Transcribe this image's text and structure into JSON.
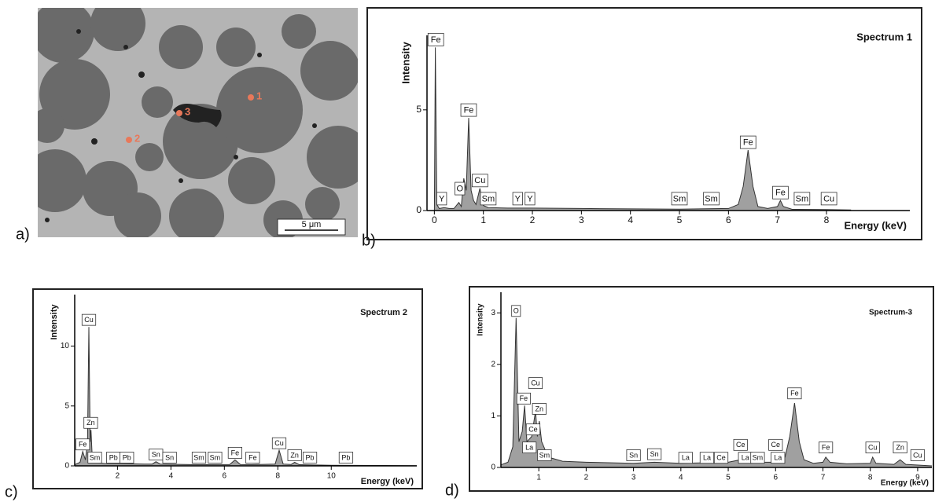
{
  "panels": [
    "a)",
    "b)",
    "c)",
    "d)"
  ],
  "micrograph": {
    "points": [
      "1",
      "2",
      "3"
    ],
    "scale_bar": "5 μm"
  },
  "chart_data": [
    {
      "type": "area",
      "title": "Spectrum 1",
      "x_label": "Energy (keV)",
      "y_label": "Intensity",
      "x": [
        0,
        0.02,
        0.05,
        0.1,
        0.2,
        0.3,
        0.4,
        0.5,
        0.55,
        0.6,
        0.65,
        0.7,
        0.75,
        0.8,
        0.85,
        0.93,
        1.0,
        1.1,
        1.5,
        2,
        3,
        4,
        5,
        6,
        6.2,
        6.3,
        6.4,
        6.5,
        6.6,
        6.8,
        7.0,
        7.06,
        7.12,
        7.3,
        8,
        8.5
      ],
      "values": [
        0,
        8.1,
        0.3,
        0.1,
        0.15,
        0.1,
        0.1,
        0.4,
        0.2,
        1.6,
        1,
        4.6,
        1,
        0.5,
        0.3,
        1.1,
        0.25,
        0.15,
        0.12,
        0.12,
        0.1,
        0.08,
        0.07,
        0.1,
        0.3,
        1.2,
        3.0,
        1.2,
        0.2,
        0.1,
        0.2,
        0.5,
        0.2,
        0.06,
        0.05,
        0.03
      ],
      "color": "#888888",
      "xlim": [
        -0.15,
        9.7
      ],
      "ylim": [
        0,
        8.7
      ],
      "xticks": [
        0,
        1,
        2,
        3,
        4,
        5,
        6,
        7,
        8
      ],
      "yticks": [
        0,
        5
      ],
      "annotations": [
        {
          "text": "Fe",
          "x": 0.03,
          "y": 8.1
        },
        {
          "text": "Fe",
          "x": 0.7,
          "y": 4.6
        },
        {
          "text": "Y",
          "x": 0.15,
          "y": 0.2
        },
        {
          "text": "O",
          "x": 0.52,
          "y": 0.7
        },
        {
          "text": "Cu",
          "x": 0.93,
          "y": 1.1
        },
        {
          "text": "Sm",
          "x": 1.1,
          "y": 0.2
        },
        {
          "text": "Y",
          "x": 1.7,
          "y": 0.2
        },
        {
          "text": "Y",
          "x": 1.95,
          "y": 0.2
        },
        {
          "text": "Sm",
          "x": 5.0,
          "y": 0.2
        },
        {
          "text": "Sm",
          "x": 5.65,
          "y": 0.2
        },
        {
          "text": "Fe",
          "x": 6.4,
          "y": 3.0
        },
        {
          "text": "Fe",
          "x": 7.06,
          "y": 0.5
        },
        {
          "text": "Sm",
          "x": 7.5,
          "y": 0.2
        },
        {
          "text": "Cu",
          "x": 8.05,
          "y": 0.2
        }
      ]
    },
    {
      "type": "area",
      "title": "Spectrum 2",
      "x_label": "Energy (keV)",
      "y_label": "Intensity",
      "x": [
        0.4,
        0.6,
        0.7,
        0.8,
        0.88,
        0.93,
        0.98,
        1.01,
        1.05,
        1.15,
        1.5,
        2,
        3,
        3.3,
        3.44,
        3.6,
        5,
        6.2,
        6.4,
        6.6,
        7,
        7.9,
        8.05,
        8.2,
        8.5,
        8.63,
        8.8,
        10,
        12,
        13.2
      ],
      "values": [
        0.1,
        0.3,
        1.2,
        0.5,
        2,
        11.6,
        2,
        3,
        1,
        0.3,
        0.2,
        0.2,
        0.15,
        0.15,
        0.35,
        0.15,
        0.1,
        0.12,
        0.5,
        0.12,
        0.1,
        0.15,
        1.3,
        0.15,
        0.12,
        0.3,
        0.1,
        0.05,
        0.03,
        0.02
      ],
      "color": "#888888",
      "xlim": [
        0.4,
        13.2
      ],
      "ylim": [
        0,
        14.3
      ],
      "xticks": [
        2,
        4,
        6,
        8,
        10
      ],
      "yticks": [
        0,
        5,
        10
      ],
      "annotations": [
        {
          "text": "Cu",
          "x": 0.93,
          "y": 11.6
        },
        {
          "text": "Zn",
          "x": 1.0,
          "y": 3
        },
        {
          "text": "Fe",
          "x": 0.7,
          "y": 1.2
        },
        {
          "text": "Sm",
          "x": 1.15,
          "y": 0.1
        },
        {
          "text": "Pb",
          "x": 1.85,
          "y": 0.1
        },
        {
          "text": "Pb",
          "x": 2.35,
          "y": 0.1
        },
        {
          "text": "Sn",
          "x": 3.44,
          "y": 0.35
        },
        {
          "text": "Sn",
          "x": 3.95,
          "y": 0.1
        },
        {
          "text": "Sm",
          "x": 5.05,
          "y": 0.1
        },
        {
          "text": "Sm",
          "x": 5.65,
          "y": 0.1
        },
        {
          "text": "Fe",
          "x": 6.4,
          "y": 0.5
        },
        {
          "text": "Fe",
          "x": 7.06,
          "y": 0.1
        },
        {
          "text": "Cu",
          "x": 8.05,
          "y": 1.3
        },
        {
          "text": "Zn",
          "x": 8.63,
          "y": 0.3
        },
        {
          "text": "Pb",
          "x": 9.2,
          "y": 0.1
        },
        {
          "text": "Pb",
          "x": 10.55,
          "y": 0.1
        }
      ]
    },
    {
      "type": "area",
      "title": "Spectrum-3",
      "x_label": "Energy (keV)",
      "y_label": "Intensity",
      "x": [
        0.2,
        0.35,
        0.45,
        0.52,
        0.58,
        0.65,
        0.7,
        0.75,
        0.85,
        0.93,
        0.97,
        1.01,
        1.06,
        1.2,
        1.5,
        2,
        3,
        3.44,
        4,
        5,
        5.26,
        5.4,
        6,
        6.2,
        6.3,
        6.4,
        6.5,
        6.6,
        6.8,
        7,
        7.06,
        7.15,
        7.5,
        8,
        8.05,
        8.12,
        8.5,
        8.63,
        8.75,
        9.3
      ],
      "values": [
        0.05,
        0.1,
        0.4,
        2.9,
        0.5,
        0.7,
        1.2,
        0.5,
        0.6,
        1.1,
        0.6,
        0.9,
        0.5,
        0.2,
        0.12,
        0.1,
        0.08,
        0.1,
        0.08,
        0.1,
        0.15,
        0.1,
        0.1,
        0.2,
        0.6,
        1.25,
        0.5,
        0.15,
        0.08,
        0.1,
        0.2,
        0.1,
        0.07,
        0.08,
        0.2,
        0.08,
        0.06,
        0.15,
        0.06,
        0.03
      ],
      "color": "#888888",
      "xlim": [
        0.2,
        9.3
      ],
      "ylim": [
        0,
        3.4
      ],
      "xticks": [
        1,
        2,
        3,
        4,
        5,
        6,
        7,
        8,
        9
      ],
      "yticks": [
        0,
        1,
        2,
        3
      ],
      "annotations": [
        {
          "text": "O",
          "x": 0.52,
          "y": 2.9
        },
        {
          "text": "Fe",
          "x": 0.68,
          "y": 1.2
        },
        {
          "text": "Cu",
          "x": 0.93,
          "y": 1.5
        },
        {
          "text": "Zn",
          "x": 1.01,
          "y": 1.0
        },
        {
          "text": "Ce",
          "x": 0.88,
          "y": 0.6
        },
        {
          "text": "La",
          "x": 0.8,
          "y": 0.25
        },
        {
          "text": "Sm",
          "x": 1.12,
          "y": 0.1
        },
        {
          "text": "Sn",
          "x": 3.0,
          "y": 0.1
        },
        {
          "text": "Sn",
          "x": 3.44,
          "y": 0.12
        },
        {
          "text": "La",
          "x": 4.1,
          "y": 0.05
        },
        {
          "text": "La",
          "x": 4.55,
          "y": 0.05
        },
        {
          "text": "Ce",
          "x": 4.85,
          "y": 0.05
        },
        {
          "text": "Ce",
          "x": 5.26,
          "y": 0.3
        },
        {
          "text": "La",
          "x": 5.36,
          "y": 0.05
        },
        {
          "text": "Sm",
          "x": 5.62,
          "y": 0.05
        },
        {
          "text": "Ce",
          "x": 6.0,
          "y": 0.3
        },
        {
          "text": "La",
          "x": 6.05,
          "y": 0.05
        },
        {
          "text": "Fe",
          "x": 6.4,
          "y": 1.3
        },
        {
          "text": "Fe",
          "x": 7.06,
          "y": 0.25
        },
        {
          "text": "Cu",
          "x": 8.05,
          "y": 0.25
        },
        {
          "text": "Zn",
          "x": 8.63,
          "y": 0.25
        },
        {
          "text": "Cu",
          "x": 9.0,
          "y": 0.1
        }
      ]
    }
  ]
}
